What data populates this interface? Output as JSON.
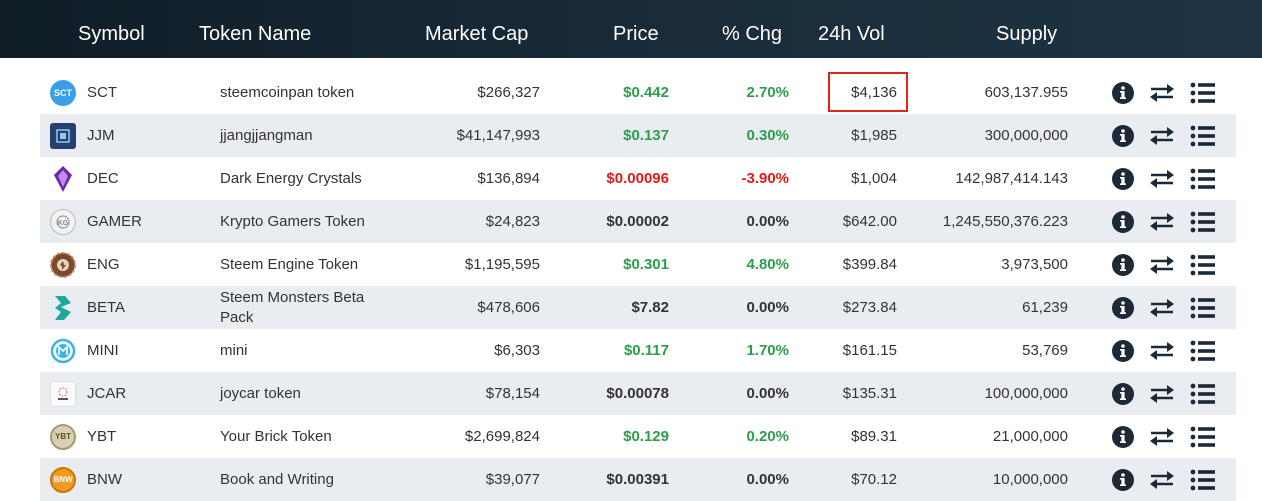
{
  "header": {
    "symbol": "Symbol",
    "token_name": "Token Name",
    "market_cap": "Market Cap",
    "price": "Price",
    "chg": "% Chg",
    "vol": "24h Vol",
    "supply": "Supply"
  },
  "colors": {
    "positive": "#2c9e4a",
    "negative": "#e41a1a",
    "highlight": "#e3241b",
    "header_bg": "#16242f"
  },
  "rows": [
    {
      "symbol": "SCT",
      "name": "steemcoinpan token",
      "market_cap": "$266,327",
      "price": "$0.442",
      "chg": "2.70%",
      "vol": "$4,136",
      "supply": "603,137.955",
      "trend": "pos",
      "logo": "sct-logo",
      "logo_text": "SCT"
    },
    {
      "symbol": "JJM",
      "name": "jjangjjangman",
      "market_cap": "$41,147,993",
      "price": "$0.137",
      "chg": "0.30%",
      "vol": "$1,985",
      "supply": "300,000,000",
      "trend": "pos",
      "logo": "jjm-logo"
    },
    {
      "symbol": "DEC",
      "name": "Dark Energy Crystals",
      "market_cap": "$136,894",
      "price": "$0.00096",
      "chg": "-3.90%",
      "vol": "$1,004",
      "supply": "142,987,414.143",
      "trend": "neg",
      "logo": "dec-logo"
    },
    {
      "symbol": "GAMER",
      "name": "Krypto Gamers Token",
      "market_cap": "$24,823",
      "price": "$0.00002",
      "chg": "0.00%",
      "vol": "$642.00",
      "supply": "1,245,550,376.223",
      "trend": "zero",
      "logo": "gamer-logo"
    },
    {
      "symbol": "ENG",
      "name": "Steem Engine Token",
      "market_cap": "$1,195,595",
      "price": "$0.301",
      "chg": "4.80%",
      "vol": "$399.84",
      "supply": "3,973,500",
      "trend": "pos",
      "logo": "eng-logo"
    },
    {
      "symbol": "BETA",
      "name": "Steem Monsters Beta Pack",
      "market_cap": "$478,606",
      "price": "$7.82",
      "chg": "0.00%",
      "vol": "$273.84",
      "supply": "61,239",
      "trend": "zero",
      "logo": "beta-logo"
    },
    {
      "symbol": "MINI",
      "name": "mini",
      "market_cap": "$6,303",
      "price": "$0.117",
      "chg": "1.70%",
      "vol": "$161.15",
      "supply": "53,769",
      "trend": "pos",
      "logo": "mini-logo"
    },
    {
      "symbol": "JCAR",
      "name": "joycar token",
      "market_cap": "$78,154",
      "price": "$0.00078",
      "chg": "0.00%",
      "vol": "$135.31",
      "supply": "100,000,000",
      "trend": "zero",
      "logo": "jcar-logo"
    },
    {
      "symbol": "YBT",
      "name": "Your Brick Token",
      "market_cap": "$2,699,824",
      "price": "$0.129",
      "chg": "0.20%",
      "vol": "$89.31",
      "supply": "21,000,000",
      "trend": "pos",
      "logo": "ybt-logo",
      "logo_text": "YBT"
    },
    {
      "symbol": "BNW",
      "name": "Book and Writing",
      "market_cap": "$39,077",
      "price": "$0.00391",
      "chg": "0.00%",
      "vol": "$70.12",
      "supply": "10,000,000",
      "trend": "zero",
      "logo": "bnw-logo",
      "logo_text": "BNW"
    }
  ],
  "icons": {
    "info": "info-circle-icon",
    "swap": "swap-arrows-icon",
    "list": "list-icon"
  }
}
